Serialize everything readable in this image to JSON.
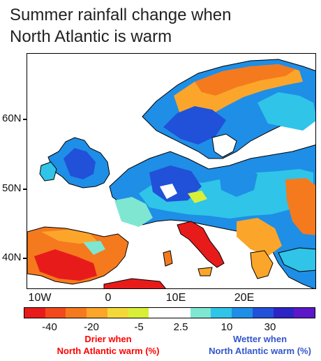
{
  "title": {
    "line1": "Summer rainfall change when",
    "line2": "North Atlantic is warm"
  },
  "map": {
    "latitude_labels": [
      "60N",
      "50N",
      "40N"
    ],
    "longitude_labels": [
      "10W",
      "0",
      "10E",
      "20E"
    ]
  },
  "colorbar": {
    "colors": [
      "#e81b1b",
      "#f2491c",
      "#f57a1e",
      "#fba62a",
      "#f4d83a",
      "#d8ef38",
      "#ffffff",
      "#ffffff",
      "#7fe6d2",
      "#2fc4e8",
      "#1e8ee6",
      "#2151d8",
      "#2c24c4",
      "#5c17c8"
    ],
    "labels": [
      "-40",
      "-20",
      "-5",
      "2.5",
      "10",
      "30"
    ]
  },
  "notes": {
    "dry_line1": "Drier when",
    "dry_line2": "North Atlantic warm (%)",
    "wet_line1": "Wetter when",
    "wet_line2": "North Atlantic warm (%)"
  }
}
